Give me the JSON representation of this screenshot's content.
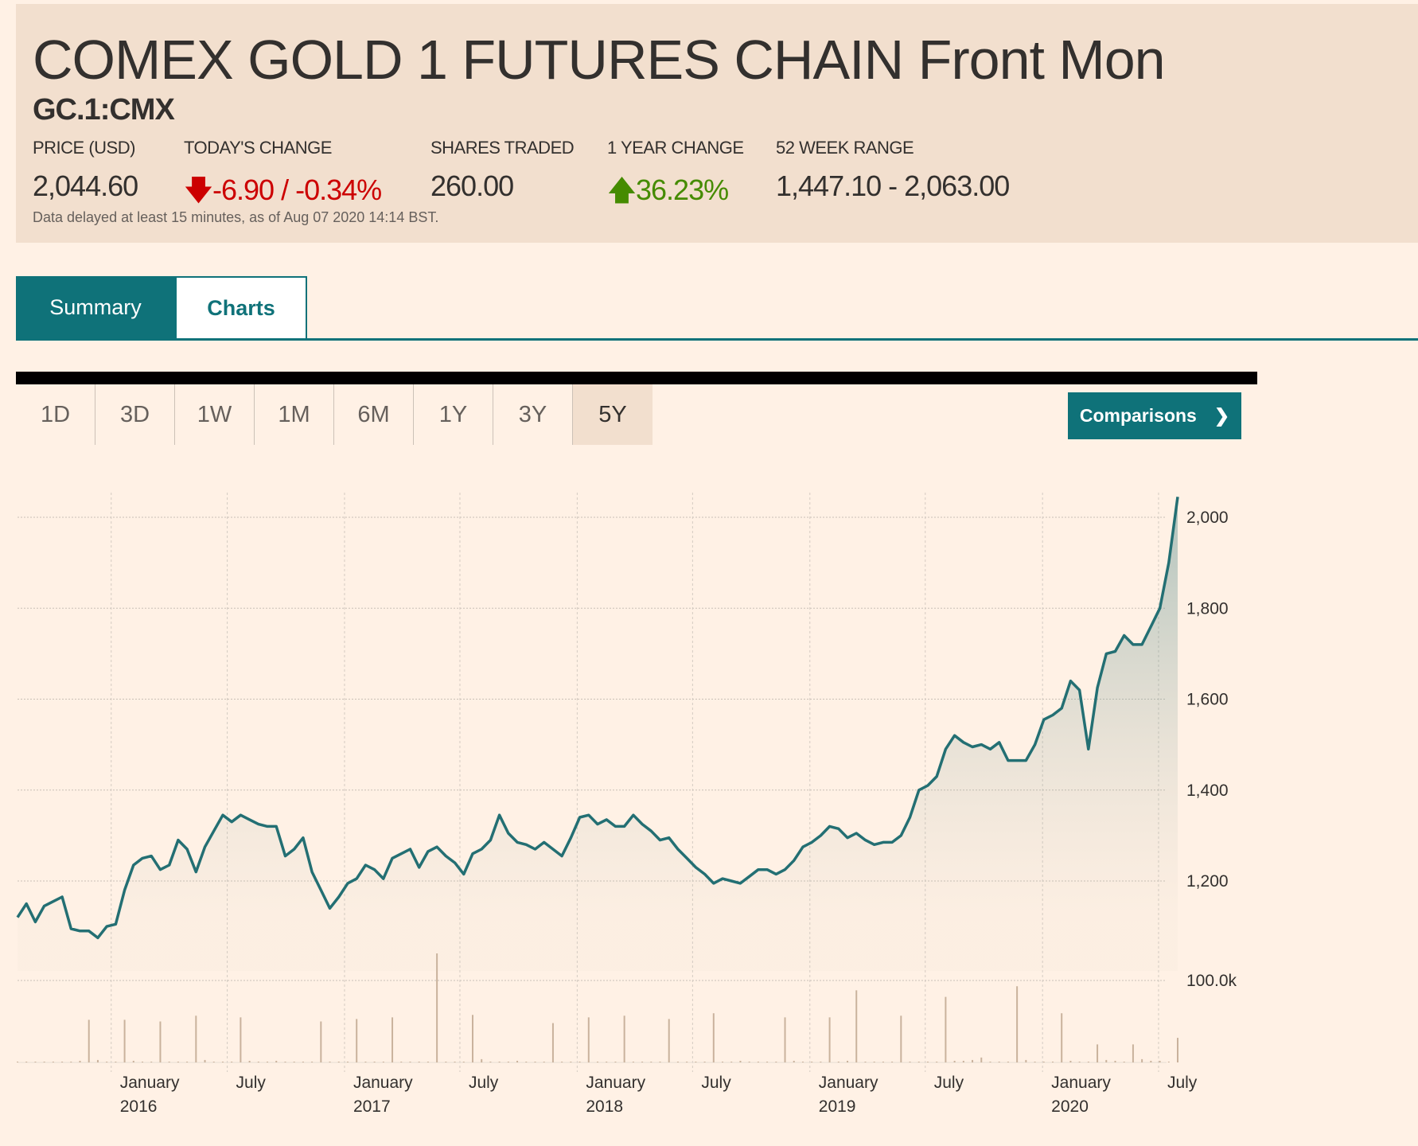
{
  "header": {
    "title": "COMEX GOLD 1 FUTURES CHAIN Front Mon",
    "symbol": "GC.1:CMX",
    "stats": [
      {
        "label": "PRICE (USD)",
        "value": "2,044.60"
      },
      {
        "label": "TODAY'S CHANGE",
        "value": "-6.90 / -0.34%",
        "direction": "down"
      },
      {
        "label": "SHARES TRADED",
        "value": "260.00"
      },
      {
        "label": "1 YEAR CHANGE",
        "value": "36.23%",
        "direction": "up"
      },
      {
        "label": "52 WEEK RANGE",
        "value": "1,447.10 - 2,063.00"
      }
    ],
    "delay_note": "Data delayed at least 15 minutes, as of Aug 07 2020 14:14 BST."
  },
  "tabs": [
    {
      "label": "Summary",
      "active": false
    },
    {
      "label": "Charts",
      "active": true
    }
  ],
  "periods": [
    "1D",
    "3D",
    "1W",
    "1M",
    "6M",
    "1Y",
    "3Y",
    "5Y"
  ],
  "selected_period": "5Y",
  "comparisons_label": "Comparisons",
  "colors": {
    "accent": "#0f7279",
    "line": "#236f73",
    "down": "#cc0000",
    "up": "#458b00",
    "volume": "#c9b29c"
  },
  "chart_data": {
    "type": "area",
    "start_date": "2015-08-07",
    "interval_days": 14,
    "price_ticks": [
      1200,
      1400,
      1600,
      1800,
      2000
    ],
    "price_tick_labels": [
      "1,200",
      "1,400",
      "1,600",
      "1,800",
      "2,000"
    ],
    "volume_tick": 100,
    "volume_tick_label": "100.0k",
    "x_ticks": [
      {
        "date": "2016-01-01",
        "label": "January",
        "year": "2016"
      },
      {
        "date": "2016-07-01",
        "label": "July",
        "year": ""
      },
      {
        "date": "2017-01-01",
        "label": "January",
        "year": "2017"
      },
      {
        "date": "2017-07-01",
        "label": "July",
        "year": ""
      },
      {
        "date": "2018-01-01",
        "label": "January",
        "year": "2018"
      },
      {
        "date": "2018-07-01",
        "label": "July",
        "year": ""
      },
      {
        "date": "2019-01-01",
        "label": "January",
        "year": "2019"
      },
      {
        "date": "2019-07-01",
        "label": "July",
        "year": ""
      },
      {
        "date": "2020-01-01",
        "label": "January",
        "year": "2020"
      },
      {
        "date": "2020-07-01",
        "label": "July",
        "year": ""
      }
    ],
    "prices": [
      1120,
      1150,
      1110,
      1145,
      1155,
      1165,
      1095,
      1090,
      1090,
      1075,
      1100,
      1105,
      1180,
      1235,
      1250,
      1255,
      1225,
      1235,
      1290,
      1270,
      1220,
      1275,
      1310,
      1345,
      1330,
      1345,
      1335,
      1325,
      1320,
      1320,
      1255,
      1270,
      1295,
      1220,
      1180,
      1140,
      1165,
      1195,
      1205,
      1235,
      1225,
      1205,
      1250,
      1260,
      1270,
      1230,
      1265,
      1275,
      1255,
      1240,
      1215,
      1260,
      1270,
      1290,
      1345,
      1305,
      1285,
      1280,
      1270,
      1285,
      1270,
      1255,
      1295,
      1340,
      1345,
      1325,
      1335,
      1320,
      1320,
      1345,
      1325,
      1310,
      1290,
      1295,
      1270,
      1250,
      1230,
      1215,
      1195,
      1205,
      1200,
      1195,
      1210,
      1225,
      1225,
      1215,
      1225,
      1245,
      1275,
      1285,
      1300,
      1320,
      1315,
      1295,
      1305,
      1290,
      1280,
      1285,
      1285,
      1300,
      1340,
      1400,
      1410,
      1430,
      1490,
      1520,
      1505,
      1495,
      1500,
      1490,
      1505,
      1465,
      1465,
      1465,
      1500,
      1555,
      1565,
      1580,
      1640,
      1620,
      1490,
      1625,
      1700,
      1705,
      1740,
      1720,
      1720,
      1760,
      1800,
      1900,
      2045
    ],
    "volume_k": [
      1,
      1,
      1,
      1,
      1,
      1,
      1,
      2,
      52,
      3,
      1,
      1,
      52,
      2,
      1,
      1,
      50,
      1,
      1,
      1,
      57,
      3,
      1,
      1,
      1,
      55,
      2,
      1,
      1,
      2,
      1,
      1,
      1,
      1,
      50,
      1,
      1,
      1,
      53,
      1,
      1,
      1,
      55,
      1,
      1,
      1,
      1,
      133,
      1,
      1,
      1,
      58,
      4,
      1,
      1,
      1,
      2,
      1,
      1,
      1,
      48,
      1,
      1,
      1,
      55,
      1,
      1,
      1,
      57,
      1,
      1,
      1,
      1,
      53,
      1,
      1,
      1,
      1,
      60,
      1,
      1,
      2,
      1,
      1,
      1,
      1,
      55,
      2,
      1,
      1,
      1,
      55,
      1,
      2,
      88,
      1,
      1,
      1,
      1,
      57,
      1,
      1,
      1,
      1,
      80,
      2,
      2,
      3,
      6,
      1,
      1,
      1,
      93,
      3,
      1,
      1,
      1,
      60,
      2,
      1,
      1,
      22,
      3,
      2,
      1,
      22,
      4,
      2,
      2,
      1,
      30
    ]
  }
}
